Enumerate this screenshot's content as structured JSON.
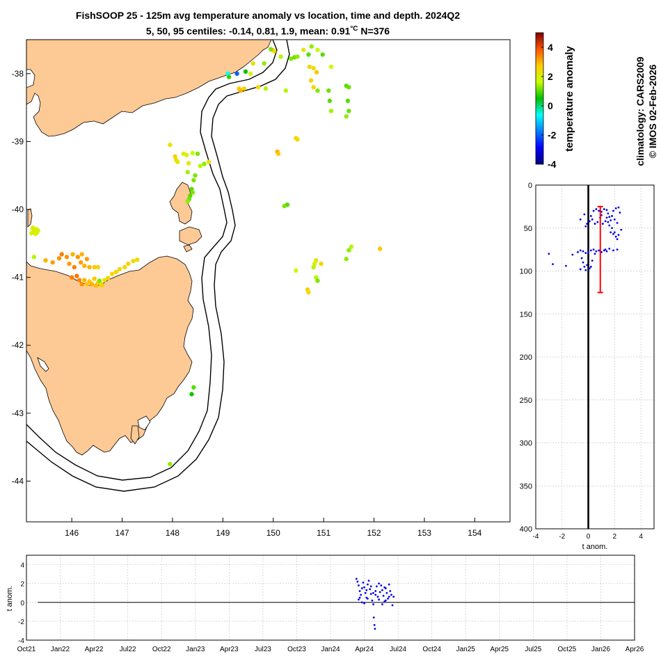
{
  "title": {
    "line1": "FishSOOP 25 - 125m avg temperature anomaly vs location, time and depth. 2024Q2",
    "line2_prefix": "5, 50, 95 centiles: -0.14, 0.81, 1.9, mean: 0.91",
    "line2_unit": "°C",
    "line2_count": " N=376"
  },
  "credits": {
    "climatology": "climatology: CARS2009",
    "copyright": "© IMOS 02-Feb-2026"
  },
  "colors": {
    "land": "#fdc995",
    "depth_points": "#0000ee",
    "time_points": "#0000ee",
    "mean_bar": "#ff0000",
    "zero_line": "#000000"
  },
  "chart_data": [
    {
      "type": "scatter",
      "name": "map",
      "xlim": [
        145.1,
        154.7
      ],
      "ylim": [
        -44.6,
        -37.5
      ],
      "xticks": [
        146,
        147,
        148,
        149,
        150,
        151,
        152,
        153,
        154
      ],
      "yticks": [
        -38,
        -39,
        -40,
        -41,
        -42,
        -43,
        -44
      ],
      "xtick_labels": [
        "146",
        "147",
        "148",
        "149",
        "150",
        "151",
        "152",
        "153",
        "154"
      ],
      "ytick_labels": [
        "-38",
        "-39",
        "-40",
        "-41",
        "-42",
        "-43",
        "-44"
      ],
      "color_field": "temperature anomaly",
      "clim": [
        -4,
        5
      ],
      "points": [
        [
          145.22,
          -40.28,
          2.0
        ],
        [
          145.25,
          -40.32,
          2.0
        ],
        [
          145.3,
          -40.29,
          2.0
        ],
        [
          145.2,
          -40.35,
          2.0
        ],
        [
          145.28,
          -40.36,
          1.9
        ],
        [
          145.33,
          -40.31,
          2.0
        ],
        [
          145.23,
          -40.27,
          2.0
        ],
        [
          145.31,
          -40.34,
          1.9
        ],
        [
          145.25,
          -40.7,
          1.5
        ],
        [
          145.48,
          -40.75,
          3.0
        ],
        [
          145.62,
          -40.78,
          3.2
        ],
        [
          145.75,
          -40.72,
          3.3
        ],
        [
          145.8,
          -40.66,
          3.5
        ],
        [
          145.9,
          -40.7,
          3.3
        ],
        [
          145.95,
          -40.8,
          3.2
        ],
        [
          146.02,
          -40.66,
          3.0
        ],
        [
          146.12,
          -40.7,
          3.3
        ],
        [
          146.2,
          -40.66,
          3.0
        ],
        [
          146.05,
          -40.85,
          3.5
        ],
        [
          146.18,
          -40.78,
          3.2
        ],
        [
          146.25,
          -40.83,
          3.0
        ],
        [
          146.35,
          -40.85,
          3.0
        ],
        [
          146.3,
          -40.73,
          3.2
        ],
        [
          146.45,
          -40.85,
          2.8
        ],
        [
          146.52,
          -40.85,
          2.6
        ],
        [
          146.0,
          -41.0,
          3.5
        ],
        [
          146.1,
          -40.98,
          3.6
        ],
        [
          146.15,
          -41.04,
          3.4
        ],
        [
          146.2,
          -41.1,
          3.3
        ],
        [
          146.25,
          -41.04,
          3.0
        ],
        [
          146.3,
          -41.1,
          2.8
        ],
        [
          146.35,
          -41.06,
          2.8
        ],
        [
          146.4,
          -41.1,
          3.0
        ],
        [
          146.45,
          -41.02,
          2.8
        ],
        [
          146.52,
          -41.08,
          2.6
        ],
        [
          146.58,
          -41.1,
          2.4
        ],
        [
          146.65,
          -41.04,
          2.3
        ],
        [
          146.72,
          -41.01,
          2.5
        ],
        [
          146.8,
          -40.95,
          2.6
        ],
        [
          146.88,
          -40.92,
          2.6
        ],
        [
          146.95,
          -40.88,
          2.5
        ],
        [
          147.05,
          -40.85,
          2.6
        ],
        [
          147.12,
          -40.8,
          2.6
        ],
        [
          147.22,
          -40.76,
          2.4
        ],
        [
          147.3,
          -40.74,
          2.4
        ],
        [
          146.6,
          -41.12,
          2.6
        ],
        [
          146.48,
          -41.12,
          2.9
        ],
        [
          146.55,
          -41.05,
          1.2
        ],
        [
          147.95,
          -39.05,
          2.2
        ],
        [
          148.05,
          -39.22,
          2.6
        ],
        [
          148.07,
          -39.27,
          2.4
        ],
        [
          148.1,
          -39.3,
          2.2
        ],
        [
          148.22,
          -39.18,
          2.0
        ],
        [
          148.28,
          -39.2,
          1.8
        ],
        [
          148.32,
          -39.32,
          2.1
        ],
        [
          148.4,
          -39.17,
          1.6
        ],
        [
          148.3,
          -39.45,
          1.4
        ],
        [
          148.45,
          -39.5,
          1.2
        ],
        [
          148.42,
          -39.57,
          1.2
        ],
        [
          148.38,
          -39.7,
          1.0
        ],
        [
          148.4,
          -39.75,
          1.2
        ],
        [
          148.35,
          -39.8,
          1.0
        ],
        [
          148.33,
          -39.85,
          1.1
        ],
        [
          148.3,
          -39.88,
          1.3
        ],
        [
          148.55,
          -39.36,
          1.5
        ],
        [
          148.63,
          -39.33,
          1.3
        ],
        [
          148.72,
          -39.3,
          2.3
        ],
        [
          148.5,
          -39.18,
          1.2
        ],
        [
          149.1,
          -38.0,
          -0.6
        ],
        [
          149.12,
          -38.05,
          0.8
        ],
        [
          149.28,
          -38.0,
          -2.0
        ],
        [
          149.45,
          -37.97,
          0.5
        ],
        [
          149.32,
          -38.22,
          2.7
        ],
        [
          149.35,
          -38.25,
          3.0
        ],
        [
          149.42,
          -38.22,
          2.6
        ],
        [
          149.55,
          -38.0,
          1.8
        ],
        [
          149.6,
          -37.85,
          2.3
        ],
        [
          149.7,
          -38.2,
          2.6
        ],
        [
          149.85,
          -38.22,
          1.5
        ],
        [
          149.82,
          -37.85,
          1.3
        ],
        [
          149.98,
          -37.65,
          2.8
        ],
        [
          150.02,
          -37.67,
          2.5
        ],
        [
          149.95,
          -37.64,
          1.2
        ],
        [
          150.15,
          -37.75,
          1.5
        ],
        [
          150.35,
          -37.78,
          1.2
        ],
        [
          150.42,
          -37.76,
          1.1
        ],
        [
          150.48,
          -37.75,
          1.3
        ],
        [
          150.6,
          -37.65,
          2.2
        ],
        [
          150.7,
          -37.72,
          1.0
        ],
        [
          150.72,
          -37.9,
          2.5
        ],
        [
          150.8,
          -37.92,
          2.3
        ],
        [
          150.86,
          -37.98,
          2.8
        ],
        [
          150.76,
          -37.6,
          1.3
        ],
        [
          150.88,
          -37.65,
          1.6
        ],
        [
          150.98,
          -37.72,
          1.0
        ],
        [
          151.15,
          -37.9,
          1.8
        ],
        [
          150.75,
          -38.1,
          2.6
        ],
        [
          150.8,
          -38.2,
          2.5
        ],
        [
          150.25,
          -38.25,
          1.5
        ],
        [
          150.88,
          -38.25,
          1.2
        ],
        [
          151.1,
          -38.25,
          1.1
        ],
        [
          151.12,
          -38.4,
          1.0
        ],
        [
          151.15,
          -38.55,
          1.4
        ],
        [
          151.45,
          -38.18,
          1.0
        ],
        [
          151.5,
          -38.2,
          1.1
        ],
        [
          151.48,
          -38.4,
          1.0
        ],
        [
          151.5,
          -38.55,
          1.1
        ],
        [
          151.45,
          -38.63,
          1.3
        ],
        [
          150.45,
          -38.95,
          2.6
        ],
        [
          150.48,
          -38.97,
          2.4
        ],
        [
          150.08,
          -39.15,
          3.0
        ],
        [
          150.1,
          -39.18,
          2.8
        ],
        [
          150.22,
          -39.95,
          1.2
        ],
        [
          150.28,
          -39.93,
          1.0
        ],
        [
          150.85,
          -40.75,
          2.2
        ],
        [
          150.82,
          -40.8,
          2.0
        ],
        [
          150.8,
          -40.85,
          1.5
        ],
        [
          150.45,
          -40.9,
          1.8
        ],
        [
          150.95,
          -40.8,
          2.5
        ],
        [
          150.85,
          -41.0,
          1.5
        ],
        [
          150.88,
          -41.05,
          1.2
        ],
        [
          150.68,
          -41.18,
          2.6
        ],
        [
          150.7,
          -41.22,
          2.4
        ],
        [
          151.55,
          -40.55,
          1.5
        ],
        [
          151.5,
          -40.6,
          1.3
        ],
        [
          151.45,
          -40.73,
          1.3
        ],
        [
          152.12,
          -40.58,
          2.8
        ],
        [
          148.42,
          -42.62,
          1.0
        ],
        [
          148.38,
          -42.72,
          0.6
        ],
        [
          147.95,
          -43.75,
          1.3
        ]
      ]
    },
    {
      "type": "scatter",
      "name": "depth_profile",
      "xlabel": "t anom.",
      "ylabel": "",
      "xlim": [
        -4,
        5
      ],
      "ylim": [
        0,
        400
      ],
      "y_reversed": true,
      "xticks": [
        -4,
        -2,
        0,
        2,
        4
      ],
      "yticks": [
        0,
        50,
        100,
        150,
        200,
        250,
        300,
        350,
        400
      ],
      "xtick_labels": [
        "-4",
        "-2",
        "0",
        "2",
        "4"
      ],
      "ytick_labels": [
        "0",
        "50",
        "100",
        "150",
        "200",
        "250",
        "300",
        "350",
        "400"
      ],
      "mean_bar": {
        "x": 0.91,
        "y_top": 25,
        "y_bottom": 125
      },
      "points": [
        [
          -0.3,
          34
        ],
        [
          -0.6,
          40
        ],
        [
          -0.2,
          48
        ],
        [
          0.2,
          36
        ],
        [
          0.4,
          30
        ],
        [
          0.6,
          28
        ],
        [
          0.8,
          30
        ],
        [
          1.0,
          31
        ],
        [
          1.2,
          28
        ],
        [
          1.4,
          29
        ],
        [
          1.5,
          33
        ],
        [
          1.6,
          37
        ],
        [
          1.7,
          41
        ],
        [
          1.8,
          36
        ],
        [
          2.0,
          40
        ],
        [
          2.2,
          44
        ],
        [
          1.9,
          30
        ],
        [
          2.1,
          27
        ],
        [
          1.3,
          42
        ],
        [
          1.1,
          45
        ],
        [
          0.9,
          38
        ],
        [
          0.7,
          43
        ],
        [
          0.5,
          45
        ],
        [
          1.6,
          47
        ],
        [
          1.8,
          50
        ],
        [
          2.0,
          55
        ],
        [
          2.1,
          60
        ],
        [
          2.3,
          58
        ],
        [
          2.5,
          52
        ],
        [
          2.2,
          63
        ],
        [
          1.9,
          57
        ],
        [
          1.7,
          55
        ],
        [
          1.5,
          43
        ],
        [
          1.4,
          38
        ],
        [
          1.0,
          35
        ],
        [
          0.3,
          40
        ],
        [
          0.1,
          42
        ],
        [
          -0.1,
          45
        ],
        [
          2.4,
          32
        ],
        [
          2.3,
          26
        ],
        [
          -3.0,
          80
        ],
        [
          -2.7,
          92
        ],
        [
          -1.7,
          94
        ],
        [
          -1.2,
          81
        ],
        [
          -0.8,
          78
        ],
        [
          -0.6,
          76
        ],
        [
          -0.4,
          77
        ],
        [
          -0.2,
          79
        ],
        [
          0.0,
          78
        ],
        [
          0.2,
          76
        ],
        [
          0.4,
          75
        ],
        [
          0.6,
          77
        ],
        [
          0.8,
          76
        ],
        [
          1.0,
          78
        ],
        [
          1.3,
          75
        ],
        [
          1.6,
          74
        ],
        [
          1.9,
          76
        ],
        [
          2.2,
          75
        ],
        [
          -0.5,
          85
        ],
        [
          -0.4,
          90
        ],
        [
          -0.3,
          95
        ],
        [
          -0.2,
          99
        ],
        [
          0.1,
          97
        ],
        [
          -0.1,
          93
        ],
        [
          0.3,
          88
        ],
        [
          0.2,
          95
        ],
        [
          -0.6,
          98
        ],
        [
          0.5,
          80
        ],
        [
          1.2,
          76
        ],
        [
          1.4,
          77
        ]
      ]
    },
    {
      "type": "scatter",
      "name": "time_series",
      "ylabel": "t anom.",
      "ylim": [
        -4,
        5
      ],
      "yticks": [
        -4,
        -2,
        0,
        2,
        4
      ],
      "ytick_labels": [
        "-4",
        "-2",
        "0",
        "2",
        "4"
      ],
      "xlim": [
        0,
        54
      ],
      "xticks": [
        0,
        3,
        6,
        9,
        12,
        15,
        18,
        21,
        24,
        27,
        30,
        33,
        36,
        39,
        42,
        45,
        48,
        51,
        54
      ],
      "xtick_labels": [
        "Oct21",
        "Jan22",
        "Apr22",
        "Jul22",
        "Oct22",
        "Jan23",
        "Apr23",
        "Jul23",
        "Oct23",
        "Jan24",
        "Apr24",
        "Jul24",
        "Oct24",
        "Jan25",
        "Apr25",
        "Jul25",
        "Oct25",
        "Jan26",
        "Apr26"
      ],
      "points": [
        [
          29.3,
          2.5
        ],
        [
          29.4,
          2.2
        ],
        [
          29.5,
          1.8
        ],
        [
          29.6,
          1.2
        ],
        [
          29.7,
          0.8
        ],
        [
          29.8,
          1.5
        ],
        [
          29.9,
          2.1
        ],
        [
          30.0,
          1.6
        ],
        [
          30.1,
          1.0
        ],
        [
          30.2,
          0.5
        ],
        [
          30.3,
          1.9
        ],
        [
          30.4,
          2.3
        ],
        [
          30.5,
          1.4
        ],
        [
          30.6,
          0.9
        ],
        [
          30.7,
          0.2
        ],
        [
          30.8,
          -0.2
        ],
        [
          30.85,
          -1.6
        ],
        [
          30.9,
          -2.4
        ],
        [
          30.95,
          -2.8
        ],
        [
          31.0,
          1.2
        ],
        [
          31.1,
          1.7
        ],
        [
          31.2,
          0.6
        ],
        [
          31.3,
          0.3
        ],
        [
          31.4,
          1.1
        ],
        [
          31.5,
          1.8
        ],
        [
          31.6,
          1.3
        ],
        [
          31.7,
          0.7
        ],
        [
          31.8,
          0.1
        ],
        [
          31.9,
          1.5
        ],
        [
          32.0,
          1.0
        ],
        [
          32.1,
          0.4
        ],
        [
          32.2,
          1.9
        ],
        [
          32.3,
          1.2
        ],
        [
          32.4,
          0.8
        ],
        [
          32.5,
          -0.3
        ],
        [
          32.6,
          0.6
        ],
        [
          29.5,
          0.3
        ],
        [
          29.8,
          0.0
        ],
        [
          30.0,
          -0.1
        ],
        [
          30.3,
          0.4
        ],
        [
          30.6,
          1.7
        ],
        [
          31.0,
          0.8
        ],
        [
          31.3,
          2.0
        ],
        [
          31.6,
          -0.2
        ],
        [
          31.9,
          0.2
        ],
        [
          32.2,
          0.6
        ],
        [
          30.2,
          1.3
        ],
        [
          29.6,
          0.5
        ],
        [
          30.8,
          1.0
        ],
        [
          31.8,
          1.6
        ]
      ]
    }
  ]
}
